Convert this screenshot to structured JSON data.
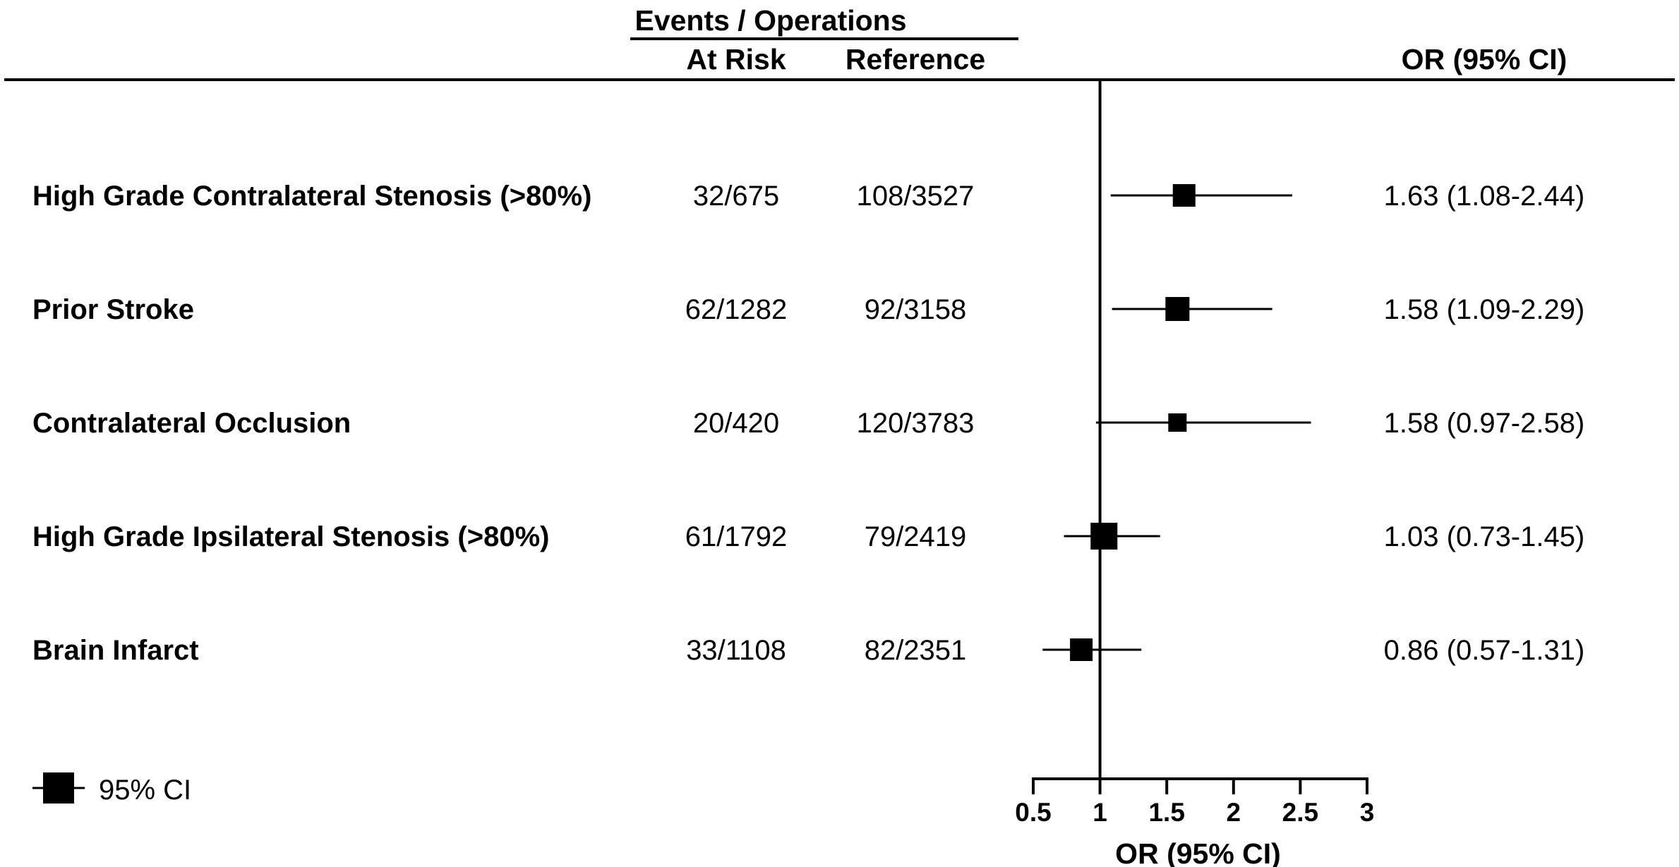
{
  "header": {
    "group_title": "Events / Operations",
    "col_at_risk": "At Risk",
    "col_reference": "Reference",
    "col_or": "OR (95% CI)"
  },
  "legend": {
    "label": "95% CI"
  },
  "chart_data": {
    "type": "forest",
    "xlabel": "OR (95% CI)",
    "xlim": [
      0.5,
      3
    ],
    "xticks": [
      0.5,
      1,
      1.5,
      2,
      2.5,
      3
    ],
    "xtick_labels": [
      "0.5",
      "1",
      "1.5",
      "2",
      "2.5",
      "3"
    ],
    "reference_line": 1,
    "rows": [
      {
        "label": "High Grade Contralateral Stenosis (>80%)",
        "at_risk": "32/675",
        "reference": "108/3527",
        "or": 1.63,
        "ci_low": 1.08,
        "ci_high": 2.44,
        "or_text": "1.63 (1.08-2.44)",
        "marker_size": 32
      },
      {
        "label": "Prior Stroke",
        "at_risk": "62/1282",
        "reference": "92/3158",
        "or": 1.58,
        "ci_low": 1.09,
        "ci_high": 2.29,
        "or_text": "1.58 (1.09-2.29)",
        "marker_size": 34
      },
      {
        "label": "Contralateral Occlusion",
        "at_risk": "20/420",
        "reference": "120/3783",
        "or": 1.58,
        "ci_low": 0.97,
        "ci_high": 2.58,
        "or_text": "1.58 (0.97-2.58)",
        "marker_size": 26
      },
      {
        "label": "High Grade Ipsilateral Stenosis (>80%)",
        "at_risk": "61/1792",
        "reference": "79/2419",
        "or": 1.03,
        "ci_low": 0.73,
        "ci_high": 1.45,
        "or_text": "1.03 (0.73-1.45)",
        "marker_size": 38
      },
      {
        "label": "Brain Infarct",
        "at_risk": "33/1108",
        "reference": "82/2351",
        "or": 0.86,
        "ci_low": 0.57,
        "ci_high": 1.31,
        "or_text": "0.86 (0.57-1.31)",
        "marker_size": 32
      }
    ]
  }
}
